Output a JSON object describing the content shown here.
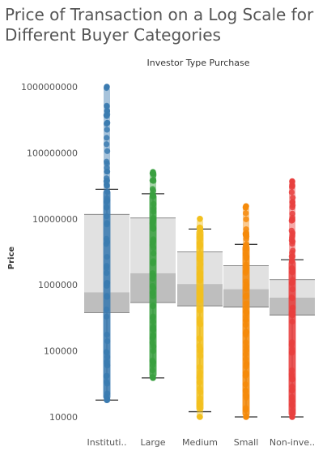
{
  "chart_data": {
    "type": "box",
    "title": "Price of Transaction on a Log Scale for Different Buyer Categories",
    "subtitle": "Investor Type Purchase",
    "ylabel": "Price",
    "yscale": "log",
    "ylim": [
      10000,
      1000000000
    ],
    "yticks": [
      "10000",
      "100000",
      "1000000",
      "10000000",
      "100000000",
      "1000000000"
    ],
    "categories": [
      "Instituti..",
      "Large",
      "Medium",
      "Small",
      "Non-inve.."
    ],
    "colors": [
      "#3b7bb0",
      "#3aa040",
      "#f2c01e",
      "#f58a0a",
      "#e8403e"
    ],
    "series": [
      {
        "whisker_low": 18000,
        "q1": 380000,
        "median": 770000,
        "q3": 11700000,
        "whisker_high": 28000000,
        "min": 18000,
        "max": 1000000000
      },
      {
        "whisker_low": 39000,
        "q1": 540000,
        "median": 1500000,
        "q3": 10300000,
        "whisker_high": 24000000,
        "min": 39000,
        "max": 51000000
      },
      {
        "whisker_low": 12000,
        "q1": 480000,
        "median": 1030000,
        "q3": 3150000,
        "whisker_high": 7000000,
        "min": 10000,
        "max": 10000000
      },
      {
        "whisker_low": 10000,
        "q1": 460000,
        "median": 860000,
        "q3": 1950000,
        "whisker_high": 4100000,
        "min": 10000,
        "max": 15500000
      },
      {
        "whisker_low": 10000,
        "q1": 350000,
        "median": 640000,
        "q3": 1200000,
        "whisker_high": 2400000,
        "min": 10000,
        "max": 37000000
      }
    ]
  }
}
